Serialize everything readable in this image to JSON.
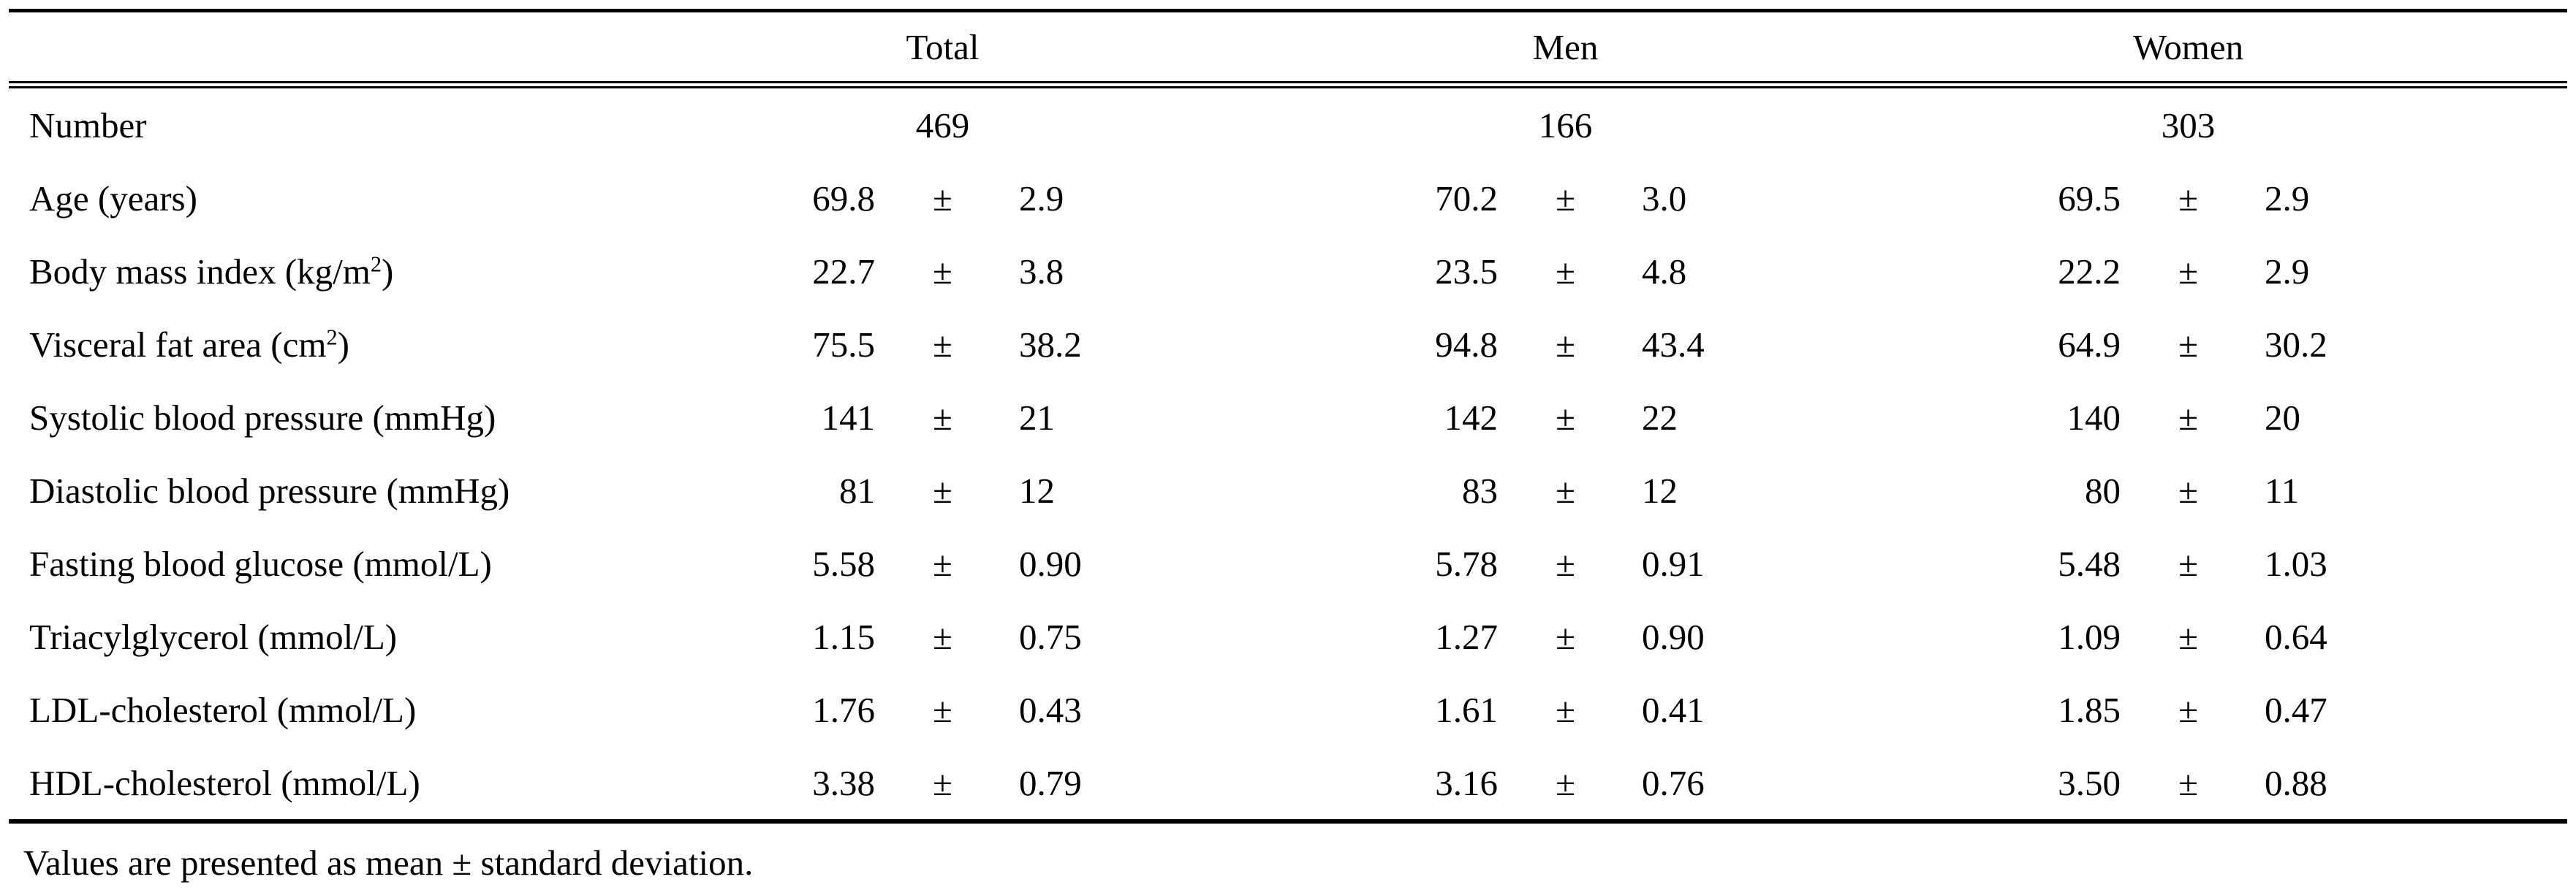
{
  "pm": "±",
  "header": {
    "groups": [
      "Total",
      "Men",
      "Women"
    ]
  },
  "number_row": {
    "label": "Number",
    "values": [
      "469",
      "166",
      "303"
    ]
  },
  "rows": [
    {
      "label_pre": "Age (years)",
      "label_sup": "",
      "label_post": "",
      "total": {
        "mean": "69.8",
        "sd": "2.9"
      },
      "men": {
        "mean": "70.2",
        "sd": "3.0"
      },
      "women": {
        "mean": "69.5",
        "sd": "2.9"
      }
    },
    {
      "label_pre": "Body mass index (kg/m",
      "label_sup": "2",
      "label_post": ")",
      "total": {
        "mean": "22.7",
        "sd": "3.8"
      },
      "men": {
        "mean": "23.5",
        "sd": "4.8"
      },
      "women": {
        "mean": "22.2",
        "sd": "2.9"
      }
    },
    {
      "label_pre": "Visceral fat area (cm",
      "label_sup": "2",
      "label_post": ")",
      "total": {
        "mean": "75.5",
        "sd": "38.2"
      },
      "men": {
        "mean": "94.8",
        "sd": "43.4"
      },
      "women": {
        "mean": "64.9",
        "sd": "30.2"
      }
    },
    {
      "label_pre": "Systolic blood pressure (mmHg)",
      "label_sup": "",
      "label_post": "",
      "total": {
        "mean": "141",
        "sd": "21"
      },
      "men": {
        "mean": "142",
        "sd": "22"
      },
      "women": {
        "mean": "140",
        "sd": "20"
      }
    },
    {
      "label_pre": "Diastolic blood pressure (mmHg)",
      "label_sup": "",
      "label_post": "",
      "total": {
        "mean": "81",
        "sd": "12"
      },
      "men": {
        "mean": "83",
        "sd": "12"
      },
      "women": {
        "mean": "80",
        "sd": "11"
      }
    },
    {
      "label_pre": "Fasting blood glucose (mmol/L)",
      "label_sup": "",
      "label_post": "",
      "total": {
        "mean": "5.58",
        "sd": "0.90"
      },
      "men": {
        "mean": "5.78",
        "sd": "0.91"
      },
      "women": {
        "mean": "5.48",
        "sd": "1.03"
      }
    },
    {
      "label_pre": "Triacylglycerol (mmol/L)",
      "label_sup": "",
      "label_post": "",
      "total": {
        "mean": "1.15",
        "sd": "0.75"
      },
      "men": {
        "mean": "1.27",
        "sd": "0.90"
      },
      "women": {
        "mean": "1.09",
        "sd": "0.64"
      }
    },
    {
      "label_pre": "LDL-cholesterol (mmol/L)",
      "label_sup": "",
      "label_post": "",
      "total": {
        "mean": "1.76",
        "sd": "0.43"
      },
      "men": {
        "mean": "1.61",
        "sd": "0.41"
      },
      "women": {
        "mean": "1.85",
        "sd": "0.47"
      }
    },
    {
      "label_pre": "HDL-cholesterol (mmol/L)",
      "label_sup": "",
      "label_post": "",
      "total": {
        "mean": "3.38",
        "sd": "0.79"
      },
      "men": {
        "mean": "3.16",
        "sd": "0.76"
      },
      "women": {
        "mean": "3.50",
        "sd": "0.88"
      }
    }
  ],
  "footnote": "Values are presented as mean ± standard deviation."
}
